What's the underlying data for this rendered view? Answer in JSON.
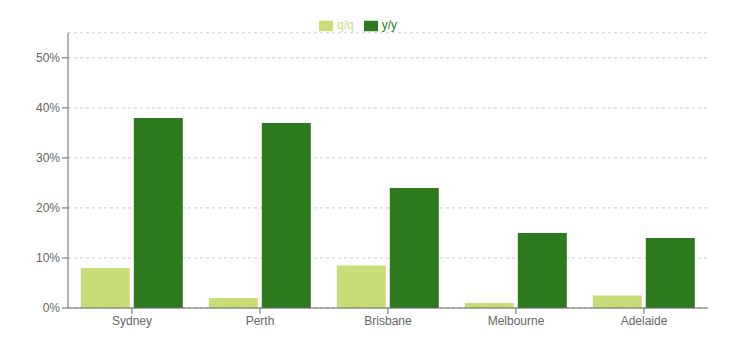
{
  "chart_data": {
    "type": "bar",
    "categories": [
      "Sydney",
      "Perth",
      "Brisbane",
      "Melbourne",
      "Adelaide"
    ],
    "series": [
      {
        "name": "q/q",
        "color": "#c8dc78",
        "values": [
          8.0,
          2.0,
          8.5,
          1.0,
          2.5
        ]
      },
      {
        "name": "y/y",
        "color": "#2d7a1e",
        "values": [
          38.0,
          37.0,
          24.0,
          15.0,
          14.0
        ]
      }
    ],
    "ylim": [
      0,
      55
    ],
    "yticks": [
      {
        "value": 0,
        "label": "0%"
      },
      {
        "value": 10,
        "label": "10%"
      },
      {
        "value": 20,
        "label": "20%"
      },
      {
        "value": 30,
        "label": "30%"
      },
      {
        "value": 40,
        "label": "40%"
      },
      {
        "value": 50,
        "label": "50%"
      }
    ],
    "grid": true,
    "legend": "top"
  }
}
